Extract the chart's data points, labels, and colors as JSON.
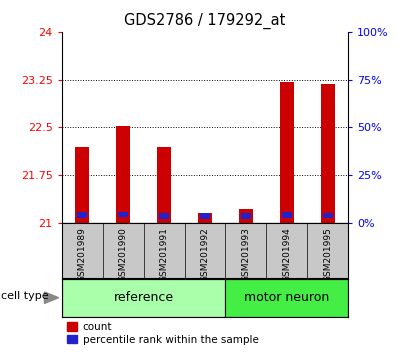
{
  "title": "GDS2786 / 179292_at",
  "samples": [
    "GSM201989",
    "GSM201990",
    "GSM201991",
    "GSM201992",
    "GSM201993",
    "GSM201994",
    "GSM201995"
  ],
  "red_tops": [
    22.2,
    22.52,
    22.2,
    21.15,
    21.22,
    23.22,
    23.18
  ],
  "blue_bottoms": [
    21.08,
    21.09,
    21.07,
    21.07,
    21.07,
    21.08,
    21.08
  ],
  "blue_heights": [
    0.09,
    0.09,
    0.08,
    0.09,
    0.08,
    0.09,
    0.08
  ],
  "ylim_left": [
    21.0,
    24.0
  ],
  "ylim_right": [
    0,
    100
  ],
  "yticks_left": [
    21,
    21.75,
    22.5,
    23.25,
    24
  ],
  "ytick_labels_left": [
    "21",
    "21.75",
    "22.5",
    "23.25",
    "24"
  ],
  "yticks_right": [
    0,
    25,
    50,
    75,
    100
  ],
  "ytick_labels_right": [
    "0%",
    "25%",
    "50%",
    "75%",
    "100%"
  ],
  "bar_width": 0.35,
  "group_bg_color": "#c8c8c8",
  "ref_group_color": "#aaffaa",
  "motor_group_color": "#44ee44",
  "plot_bg_color": "#ffffff",
  "red_color": "#cc0000",
  "blue_color": "#2222cc",
  "base": 21.0,
  "ref_label": "reference",
  "motor_label": "motor neuron",
  "legend_count": "count",
  "legend_percentile": "percentile rank within the sample",
  "cell_type_label": "cell type",
  "n_ref": 4,
  "n_motor": 3
}
